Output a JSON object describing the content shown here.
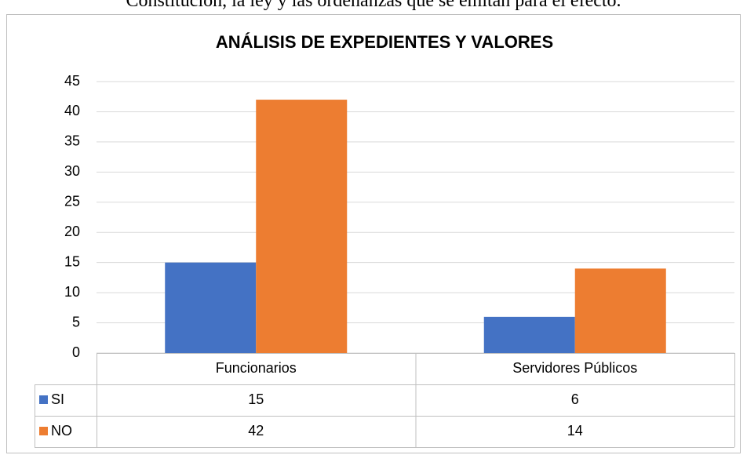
{
  "caption_above": "Constitución, la ley y las ordenanzas que se emitan para el efecto.",
  "chart_data": {
    "type": "bar",
    "title": "ANÁLISIS DE EXPEDIENTES Y VALORES",
    "categories": [
      "Funcionarios",
      "Servidores Públicos"
    ],
    "series": [
      {
        "name": "SI",
        "color": "#4472c4",
        "values": [
          15,
          6
        ]
      },
      {
        "name": "NO",
        "color": "#ed7d31",
        "values": [
          42,
          14
        ]
      }
    ],
    "ylim": [
      0,
      45
    ],
    "yticks": [
      0,
      5,
      10,
      15,
      20,
      25,
      30,
      35,
      40,
      45
    ],
    "grid": true,
    "data_table": true
  }
}
